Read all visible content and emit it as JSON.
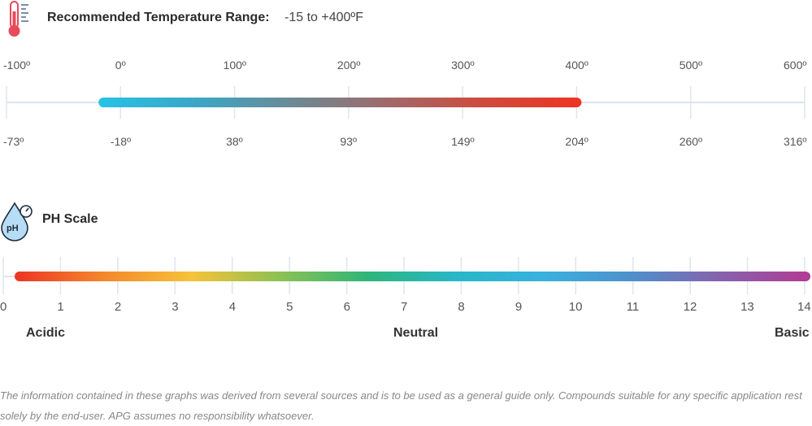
{
  "colors": {
    "temp_gradient": [
      "#27c2e6",
      "#3aa7c6",
      "#6b8a95",
      "#a06a6a",
      "#d04a3c",
      "#ee3424"
    ],
    "ph_gradient": [
      "#ec3524",
      "#f3872c",
      "#f7c23a",
      "#8cc152",
      "#2db57a",
      "#28b7c9",
      "#39b1de",
      "#4f8fcb",
      "#8761ad",
      "#b23a93"
    ],
    "axis": "#dde6ef",
    "therm_red": "#e94a5a",
    "drop_blue": "#9ec9ec"
  },
  "temperature": {
    "icon": "thermometer-icon",
    "title": "Recommended Temperature Range:",
    "range_text": "-15 to +400ºF",
    "range_f": [
      -15,
      400
    ],
    "axis_min": -100,
    "axis_max": 600,
    "fahrenheit_ticks": [
      "-100º",
      "0º",
      "100º",
      "200º",
      "300º",
      "400º",
      "500º",
      "600º"
    ],
    "celsius_ticks": [
      "-73º",
      "-18º",
      "38º",
      "93º",
      "149º",
      "204º",
      "260º",
      "316º"
    ]
  },
  "ph": {
    "icon": "ph-drop-icon",
    "title": "PH Scale",
    "numbers": [
      "0",
      "1",
      "2",
      "3",
      "4",
      "5",
      "6",
      "7",
      "8",
      "9",
      "10",
      "11",
      "12",
      "13",
      "14"
    ],
    "labels": {
      "acidic": "Acidic",
      "neutral": "Neutral",
      "basic": "Basic"
    }
  },
  "footnote": "The information contained in these graphs was derived from several sources and is to be used as a general guide only. Compounds suitable for any specific application rest solely by the end-user. APG assumes no responsibility whatsoever."
}
